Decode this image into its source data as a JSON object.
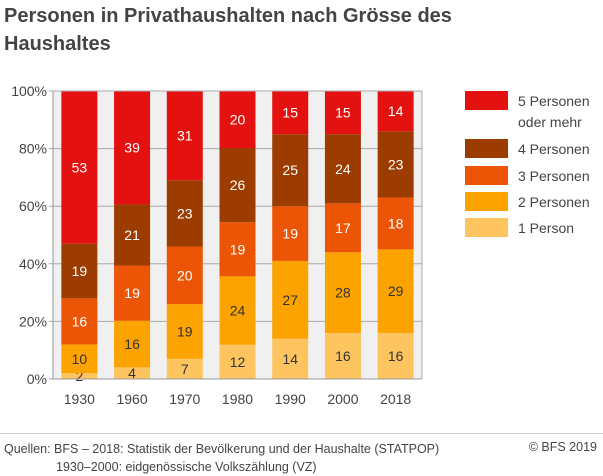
{
  "title": "Personen in Privathaushalten nach Grösse des Haushaltes",
  "source": {
    "line1": "Quellen: BFS – 2018: Statistik der Bevölkerung und der Haushalte (STATPOP)",
    "line2": "1930–2000: eidgenössische Volkszählung (VZ)"
  },
  "copyright": "© BFS 2019",
  "chart_data": {
    "type": "bar",
    "stacked": true,
    "categories": [
      "1930",
      "1960",
      "1970",
      "1980",
      "1990",
      "2000",
      "2018"
    ],
    "ylim": [
      0,
      100
    ],
    "yticks": [
      "0%",
      "20%",
      "40%",
      "60%",
      "80%",
      "100%"
    ],
    "grid": true,
    "legend_position": "right",
    "series": [
      {
        "name": "1 Person",
        "values": [
          2,
          4,
          7,
          12,
          14,
          16,
          16
        ],
        "color": "#fec45f",
        "label_color": "#333333"
      },
      {
        "name": "2 Personen",
        "values": [
          10,
          16,
          19,
          24,
          27,
          28,
          29
        ],
        "color": "#fca300",
        "label_color": "#333333"
      },
      {
        "name": "3 Personen",
        "values": [
          16,
          19,
          20,
          19,
          19,
          17,
          18
        ],
        "color": "#ec5506",
        "label_color": "#ffffff"
      },
      {
        "name": "4 Personen",
        "values": [
          19,
          21,
          23,
          26,
          25,
          24,
          23
        ],
        "color": "#9c3c00",
        "label_color": "#ffffff"
      },
      {
        "name": "5 Personen oder mehr",
        "values": [
          53,
          39,
          31,
          20,
          15,
          15,
          14
        ],
        "color": "#e3110f",
        "label_color": "#ffffff"
      }
    ],
    "legend_lines": {
      "5 Personen oder mehr": [
        "5 Personen",
        "oder mehr"
      ]
    }
  }
}
